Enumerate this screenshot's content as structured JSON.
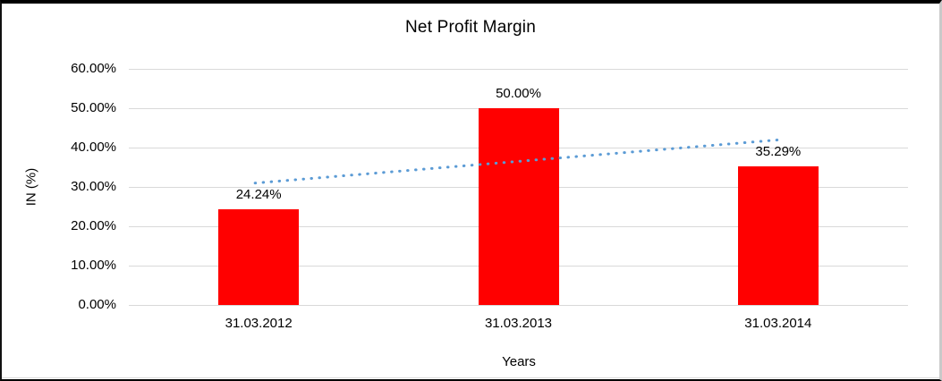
{
  "frame": {
    "background": "#ffffff",
    "border_color": "#000000"
  },
  "chart_data": {
    "type": "bar",
    "title": "Net Profit Margin",
    "xlabel": "Years",
    "ylabel": "IN (%)",
    "categories": [
      "31.03.2012",
      "31.03.2013",
      "31.03.2014"
    ],
    "values": [
      24.24,
      50.0,
      35.29
    ],
    "data_labels": [
      "24.24%",
      "50.00%",
      "35.29%"
    ],
    "ylim": [
      0,
      60
    ],
    "y_tick_values": [
      0,
      10,
      20,
      30,
      40,
      50,
      60
    ],
    "y_tick_labels": [
      "0.00%",
      "10.00%",
      "20.00%",
      "30.00%",
      "40.00%",
      "50.00%",
      "60.00%"
    ],
    "grid": true,
    "legend": "none",
    "bar_color": "#ff0000",
    "gridline_color": "#d9d9d9",
    "text_color": "#000000",
    "trendline": {
      "type": "linear",
      "style": "dotted",
      "color": "#5b9bd5",
      "start_value_pct": 30.98,
      "end_value_pct": 42.04
    }
  }
}
